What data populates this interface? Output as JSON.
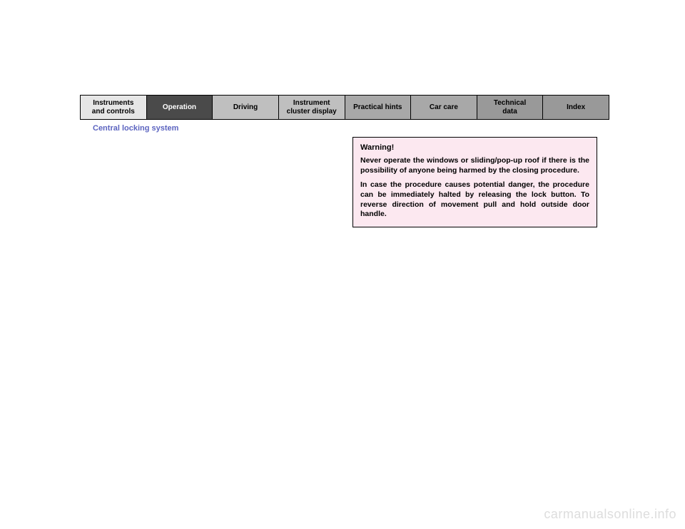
{
  "tabs": [
    {
      "label": "Instruments\nand controls",
      "bg": "#e6e6e6",
      "fg": "#000000"
    },
    {
      "label": "Operation",
      "bg": "#4a4a4a",
      "fg": "#ffffff"
    },
    {
      "label": "Driving",
      "bg": "#bfbfbf",
      "fg": "#000000"
    },
    {
      "label": "Instrument\ncluster display",
      "bg": "#bfbfbf",
      "fg": "#000000"
    },
    {
      "label": "Practical hints",
      "bg": "#a8a8a8",
      "fg": "#000000"
    },
    {
      "label": "Car care",
      "bg": "#a8a8a8",
      "fg": "#000000"
    },
    {
      "label": "Technical\ndata",
      "bg": "#999999",
      "fg": "#000000"
    },
    {
      "label": "Index",
      "bg": "#999999",
      "fg": "#000000"
    }
  ],
  "section_title": "Central locking system",
  "warning": {
    "title": "Warning!",
    "p1": "Never operate the windows or sliding/pop-up roof if there is the possibility of anyone being harmed by the closing procedure.",
    "p2": "In case the procedure causes potential danger, the procedure can be immediately halted by releasing the lock button. To reverse direction of movement pull and hold outside door handle."
  },
  "watermark": "carmanualsonline.info"
}
